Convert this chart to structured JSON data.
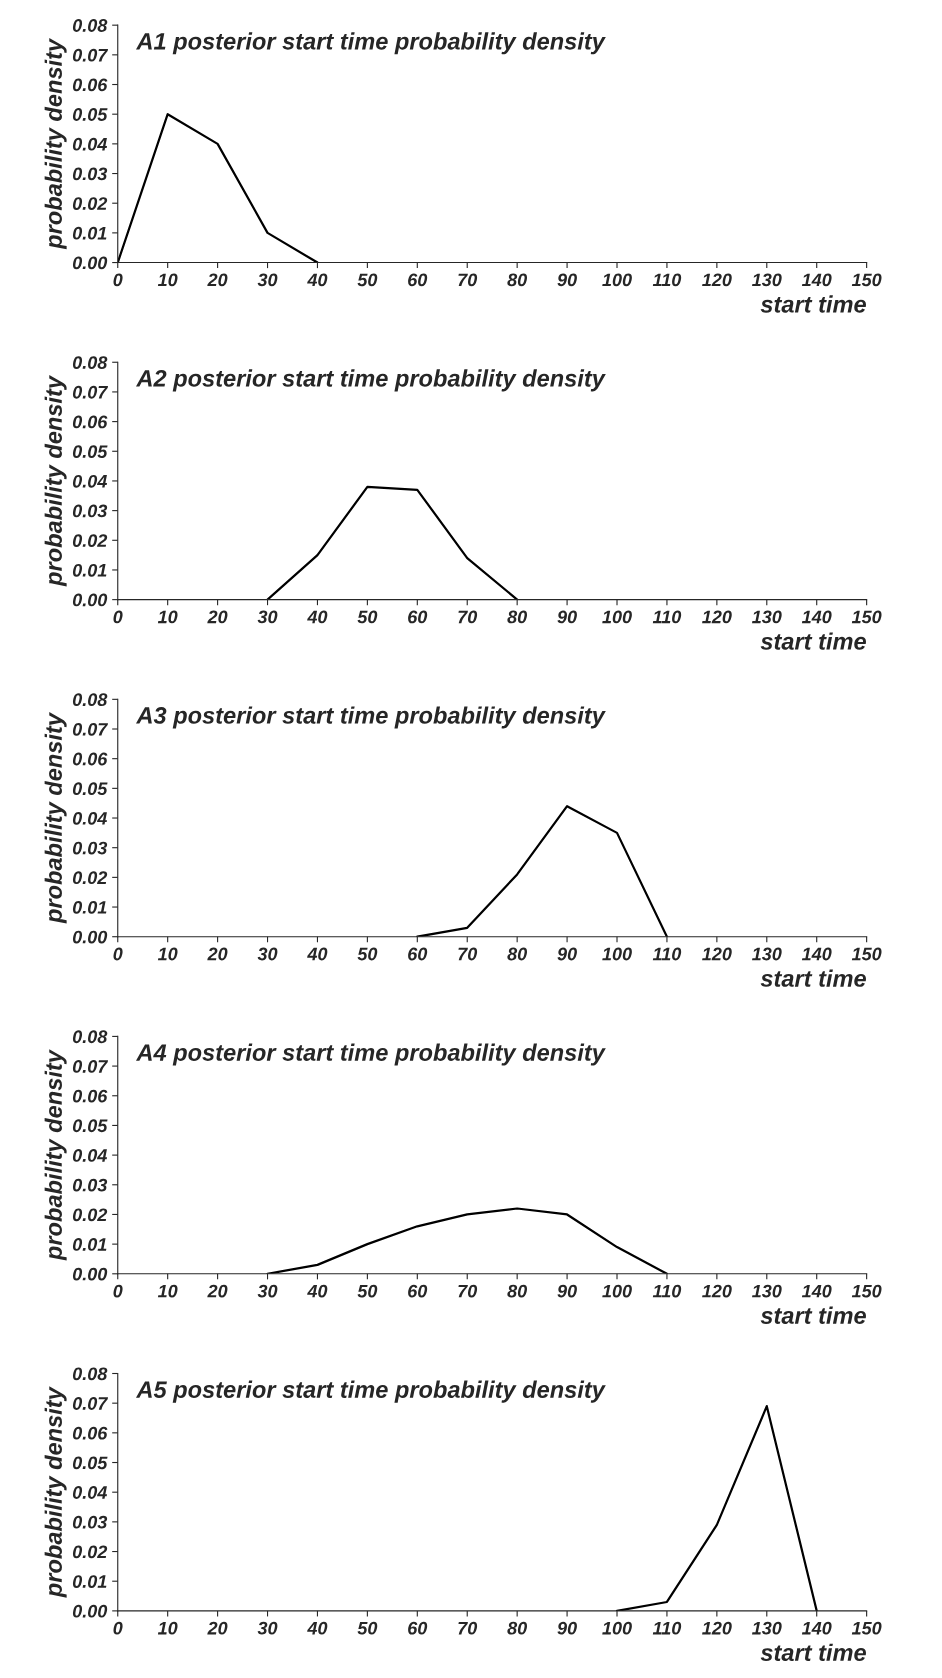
{
  "chart_data": [
    {
      "type": "line",
      "title": "A1 posterior start time probability density",
      "xlabel": "start time",
      "ylabel": "probability density",
      "color": "#000000",
      "x": [
        0,
        10,
        20,
        30,
        40
      ],
      "values": [
        0,
        0.05,
        0.04,
        0.01,
        0
      ],
      "xlim": [
        0,
        150
      ],
      "xticks": [
        0,
        10,
        20,
        30,
        40,
        50,
        60,
        70,
        80,
        90,
        100,
        110,
        120,
        130,
        140,
        150
      ],
      "ylim": [
        0,
        0.08
      ],
      "yticks": [
        {
          "value": 0,
          "label": "0.00"
        },
        {
          "value": 0.01,
          "label": "0.01"
        },
        {
          "value": 0.02,
          "label": "0.02"
        },
        {
          "value": 0.03,
          "label": "0.03"
        },
        {
          "value": 0.04,
          "label": "0.04"
        },
        {
          "value": 0.05,
          "label": "0.05"
        },
        {
          "value": 0.06,
          "label": "0.06"
        },
        {
          "value": 0.07,
          "label": "0.07"
        },
        {
          "value": 0.08,
          "label": "0.08"
        }
      ]
    },
    {
      "type": "line",
      "title": "A2 posterior start time probability density",
      "xlabel": "start time",
      "ylabel": "probability density",
      "color": "#000000",
      "x": [
        30,
        40,
        50,
        60,
        70,
        80
      ],
      "values": [
        0,
        0.015,
        0.038,
        0.037,
        0.014,
        0
      ],
      "xlim": [
        0,
        150
      ],
      "xticks": [
        0,
        10,
        20,
        30,
        40,
        50,
        60,
        70,
        80,
        90,
        100,
        110,
        120,
        130,
        140,
        150
      ],
      "ylim": [
        0,
        0.08
      ],
      "yticks": [
        {
          "value": 0,
          "label": "0.00"
        },
        {
          "value": 0.01,
          "label": "0.01"
        },
        {
          "value": 0.02,
          "label": "0.02"
        },
        {
          "value": 0.03,
          "label": "0.03"
        },
        {
          "value": 0.04,
          "label": "0.04"
        },
        {
          "value": 0.05,
          "label": "0.05"
        },
        {
          "value": 0.06,
          "label": "0.06"
        },
        {
          "value": 0.07,
          "label": "0.07"
        },
        {
          "value": 0.08,
          "label": "0.08"
        }
      ]
    },
    {
      "type": "line",
      "title": "A3 posterior start time probability density",
      "xlabel": "start time",
      "ylabel": "probability density",
      "color": "#000000",
      "x": [
        60,
        70,
        80,
        90,
        100,
        110
      ],
      "values": [
        0,
        0.003,
        0.021,
        0.044,
        0.035,
        0
      ],
      "xlim": [
        0,
        150
      ],
      "xticks": [
        0,
        10,
        20,
        30,
        40,
        50,
        60,
        70,
        80,
        90,
        100,
        110,
        120,
        130,
        140,
        150
      ],
      "ylim": [
        0,
        0.08
      ],
      "yticks": [
        {
          "value": 0,
          "label": "0.00"
        },
        {
          "value": 0.01,
          "label": "0.01"
        },
        {
          "value": 0.02,
          "label": "0.02"
        },
        {
          "value": 0.03,
          "label": "0.03"
        },
        {
          "value": 0.04,
          "label": "0.04"
        },
        {
          "value": 0.05,
          "label": "0.05"
        },
        {
          "value": 0.06,
          "label": "0.06"
        },
        {
          "value": 0.07,
          "label": "0.07"
        },
        {
          "value": 0.08,
          "label": "0.08"
        }
      ]
    },
    {
      "type": "line",
      "title": "A4 posterior start time probability density",
      "xlabel": "start time",
      "ylabel": "probability density",
      "color": "#000000",
      "x": [
        30,
        40,
        50,
        60,
        70,
        80,
        90,
        100,
        110
      ],
      "values": [
        0,
        0.003,
        0.01,
        0.016,
        0.02,
        0.022,
        0.02,
        0.009,
        0
      ],
      "xlim": [
        0,
        150
      ],
      "xticks": [
        0,
        10,
        20,
        30,
        40,
        50,
        60,
        70,
        80,
        90,
        100,
        110,
        120,
        130,
        140,
        150
      ],
      "ylim": [
        0,
        0.08
      ],
      "yticks": [
        {
          "value": 0,
          "label": "0.00"
        },
        {
          "value": 0.01,
          "label": "0.01"
        },
        {
          "value": 0.02,
          "label": "0.02"
        },
        {
          "value": 0.03,
          "label": "0.03"
        },
        {
          "value": 0.04,
          "label": "0.04"
        },
        {
          "value": 0.05,
          "label": "0.05"
        },
        {
          "value": 0.06,
          "label": "0.06"
        },
        {
          "value": 0.07,
          "label": "0.07"
        },
        {
          "value": 0.08,
          "label": "0.08"
        }
      ]
    },
    {
      "type": "line",
      "title": "A5 posterior start time probability density",
      "xlabel": "start time",
      "ylabel": "probability density",
      "color": "#000000",
      "x": [
        100,
        110,
        120,
        130,
        140
      ],
      "values": [
        0,
        0.003,
        0.029,
        0.069,
        0
      ],
      "xlim": [
        0,
        150
      ],
      "xticks": [
        0,
        10,
        20,
        30,
        40,
        50,
        60,
        70,
        80,
        90,
        100,
        110,
        120,
        130,
        140,
        150
      ],
      "ylim": [
        0,
        0.08
      ],
      "yticks": [
        {
          "value": 0,
          "label": "0.00"
        },
        {
          "value": 0.01,
          "label": "0.01"
        },
        {
          "value": 0.02,
          "label": "0.02"
        },
        {
          "value": 0.03,
          "label": "0.03"
        },
        {
          "value": 0.04,
          "label": "0.04"
        },
        {
          "value": 0.05,
          "label": "0.05"
        },
        {
          "value": 0.06,
          "label": "0.06"
        },
        {
          "value": 0.07,
          "label": "0.07"
        },
        {
          "value": 0.08,
          "label": "0.08"
        }
      ]
    }
  ]
}
